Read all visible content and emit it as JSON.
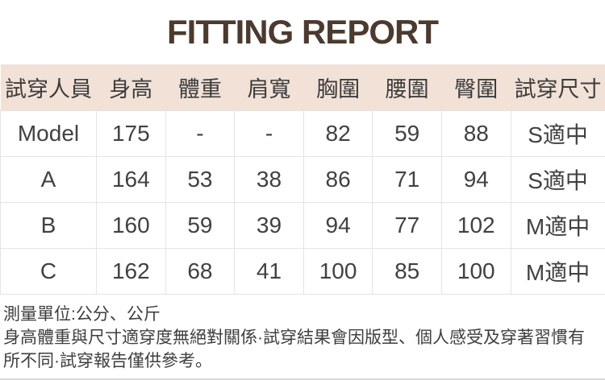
{
  "title": "FITTING REPORT",
  "colors": {
    "title_text": "#4c3a2f",
    "header_background": "#f1e1d6",
    "body_text": "#404040",
    "cell_border": "#e4e4e4",
    "page_bottom_border": "#d9d9d9"
  },
  "table": {
    "columns": [
      "試穿人員",
      "身高",
      "體重",
      "肩寬",
      "胸圍",
      "腰圍",
      "臀圍",
      "試穿尺寸"
    ],
    "rows": [
      [
        "Model",
        "175",
        "-",
        "-",
        "82",
        "59",
        "88",
        "S適中"
      ],
      [
        "A",
        "164",
        "53",
        "38",
        "86",
        "71",
        "94",
        "S適中"
      ],
      [
        "B",
        "160",
        "59",
        "39",
        "94",
        "77",
        "102",
        "M適中"
      ],
      [
        "C",
        "162",
        "68",
        "41",
        "100",
        "85",
        "100",
        "M適中"
      ]
    ]
  },
  "notes": {
    "unit": "測量單位:公分、公斤",
    "disclaimer": "身高體重與尺寸適穿度無絕對關係·試穿結果會因版型、個人感受及穿著習慣有所不同·試穿報告僅供參考。"
  }
}
